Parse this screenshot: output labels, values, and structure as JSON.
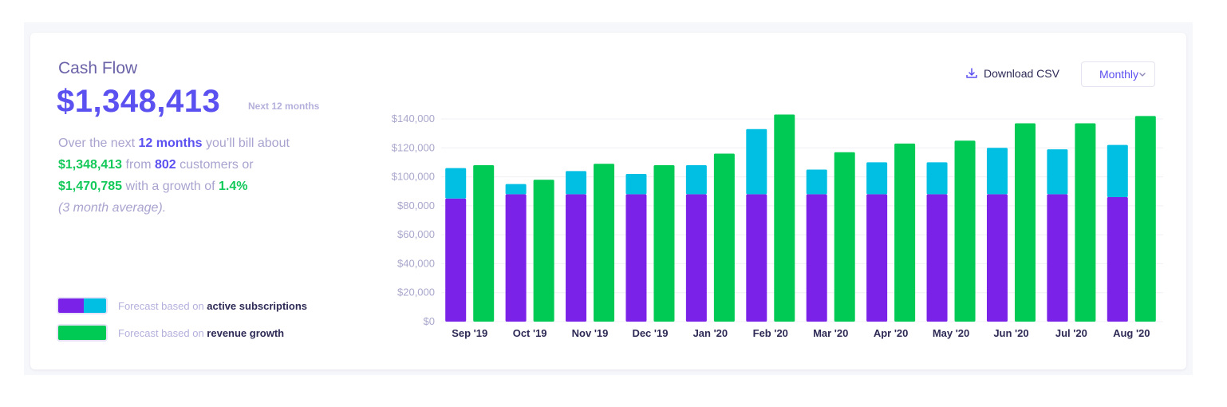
{
  "header": {
    "title": "Cash Flow",
    "amount": "$1,348,413",
    "period": "Next 12 months"
  },
  "summary": {
    "p1": "Over the next ",
    "months": "12 months",
    "p2": " you’ll bill about",
    "amount": "$1,348,413",
    "p3": " from ",
    "customers": "802",
    "p4": " customers or",
    "growth_amount": "$1,470,785",
    "p5": " with a growth of ",
    "growth_pct": "1.4%",
    "note": "(3 month average)."
  },
  "legend": [
    {
      "prefix": "Forecast based on ",
      "bold": "active subscriptions"
    },
    {
      "prefix": "Forecast based on ",
      "bold": "revenue growth"
    }
  ],
  "toolbar": {
    "download_label": "Download CSV",
    "download_icon": "download-icon",
    "period_select": "Monthly",
    "period_icon": "chevron-down-icon"
  },
  "colors": {
    "existing": "#7b22e8",
    "new_subscriptions": "#00bfe3",
    "revenue_growth": "#00c954",
    "accent": "#5b50f0"
  },
  "chart_data": {
    "type": "bar",
    "categories": [
      "Sep '19",
      "Oct '19",
      "Nov '19",
      "Dec '19",
      "Jan '20",
      "Feb '20",
      "Mar '20",
      "Apr '20",
      "May '20",
      "Jun '20",
      "Jul '20",
      "Aug '20"
    ],
    "series": [
      {
        "stack": "subscriptions",
        "color": "#7b22e8",
        "values": [
          85000,
          88000,
          88000,
          88000,
          88000,
          88000,
          88000,
          88000,
          88000,
          88000,
          88000,
          86000
        ]
      },
      {
        "stack": "subscriptions",
        "color": "#00bfe3",
        "values": [
          21000,
          7000,
          16000,
          14000,
          20000,
          45000,
          17000,
          22000,
          22000,
          32000,
          31000,
          36000
        ]
      },
      {
        "stack": "growth",
        "color": "#00c954",
        "values": [
          108000,
          98000,
          109000,
          108000,
          116000,
          143000,
          117000,
          123000,
          125000,
          137000,
          137000,
          142000
        ]
      }
    ],
    "yticks": [
      "$0",
      "$20,000",
      "$40,000",
      "$60,000",
      "$80,000",
      "$100,000",
      "$120,000",
      "$140,000"
    ],
    "ylim": [
      0,
      140000
    ],
    "xlabel": "",
    "ylabel": "",
    "grid": true,
    "legend": "bottom-left"
  }
}
